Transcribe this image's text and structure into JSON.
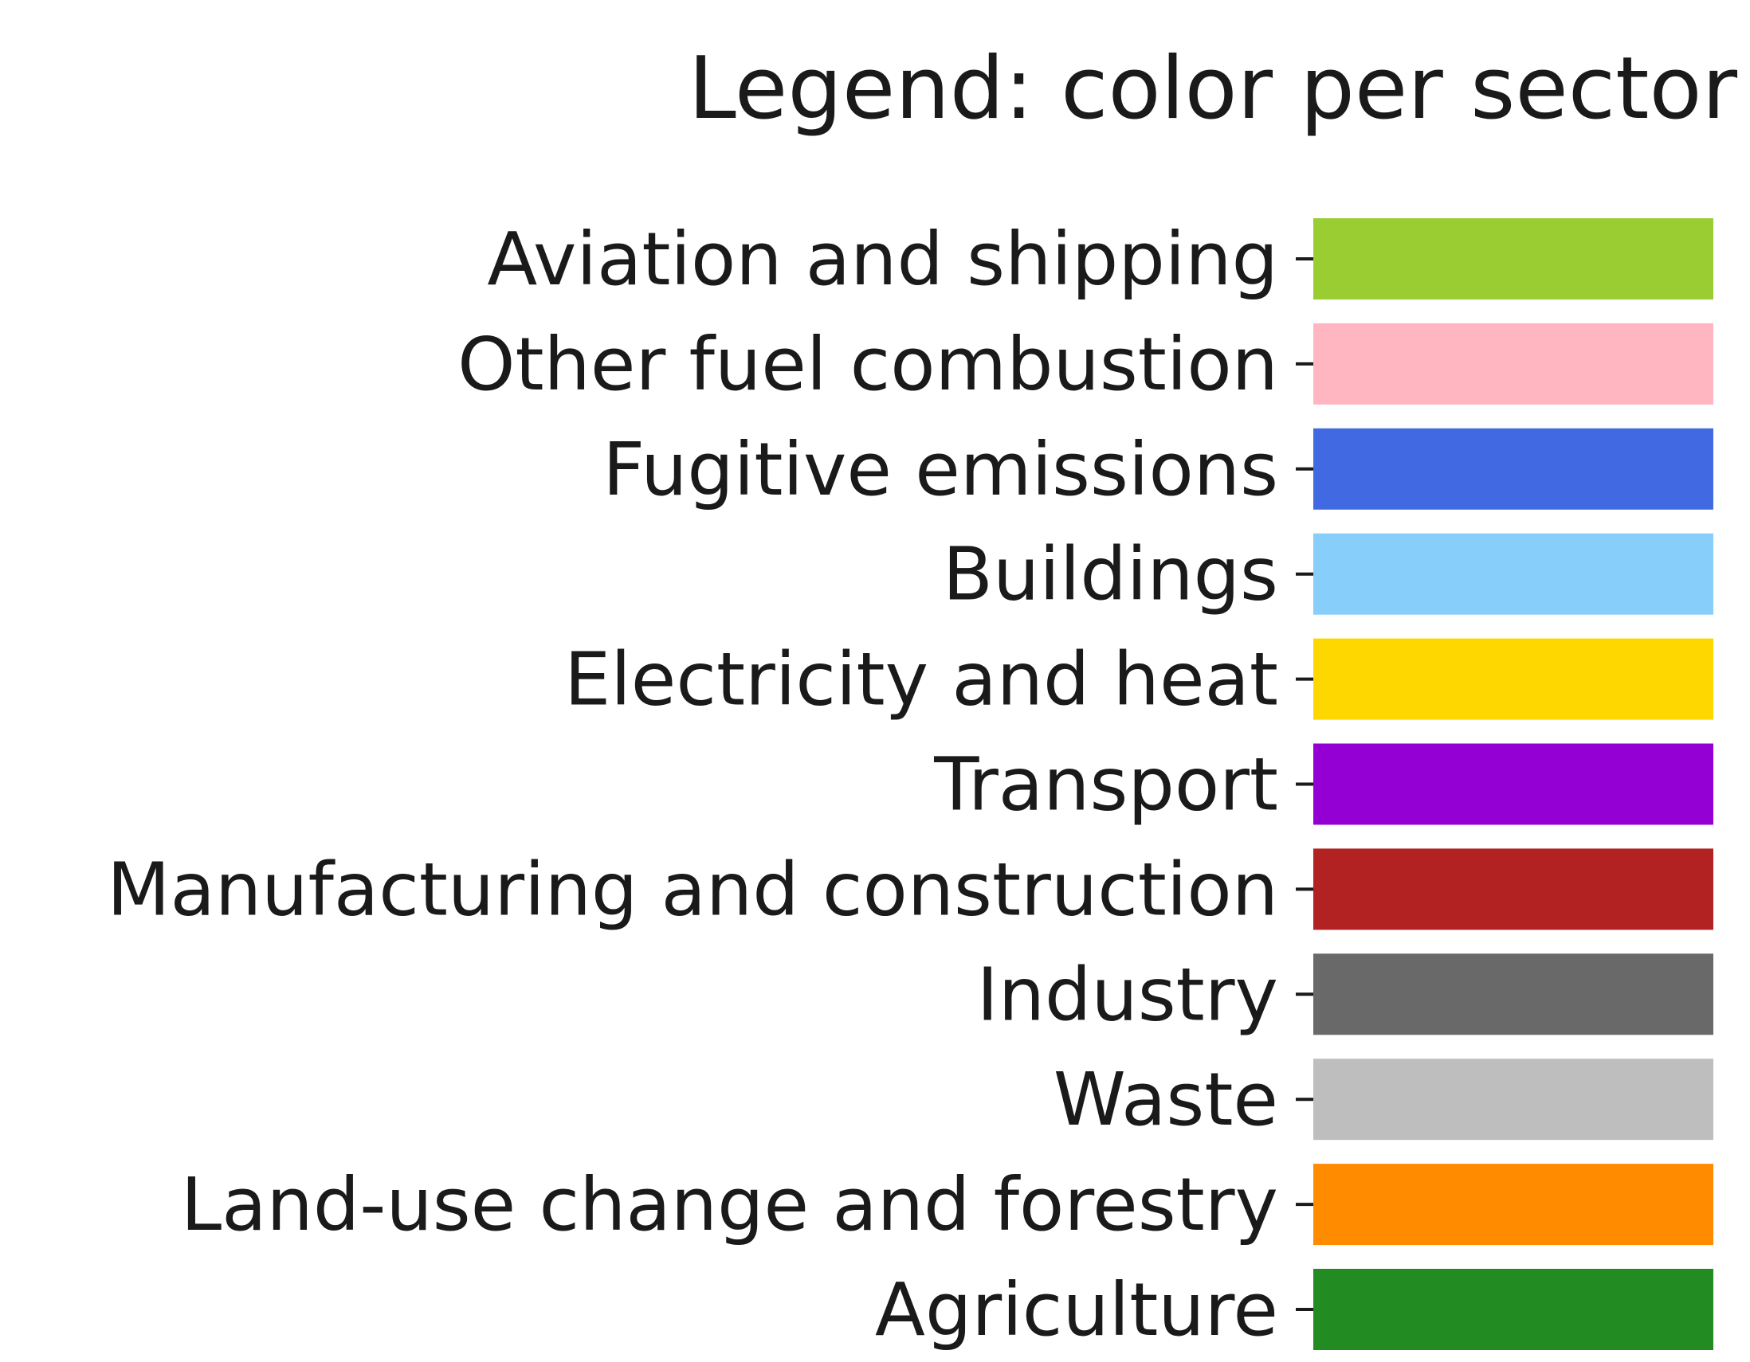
{
  "chart_data": {
    "type": "bar",
    "title": "Legend: color per sector",
    "xlabel": "",
    "ylabel": "",
    "categories": [
      "Aviation and shipping",
      "Other fuel combustion",
      "Fugitive emissions",
      "Buildings",
      "Electricity and heat",
      "Transport",
      "Manufacturing and construction",
      "Industry",
      "Waste",
      "Land-use change and forestry",
      "Agriculture"
    ],
    "values": [
      1,
      1,
      1,
      1,
      1,
      1,
      1,
      1,
      1,
      1,
      1
    ],
    "colors": [
      "#9ACD32",
      "#FFB6C1",
      "#4169E1",
      "#87CEFA",
      "#FFD700",
      "#9400D3",
      "#B22222",
      "#696969",
      "#BEBEBE",
      "#FF8C00",
      "#228B22"
    ],
    "orientation": "horizontal",
    "grid": false,
    "legend": false
  }
}
